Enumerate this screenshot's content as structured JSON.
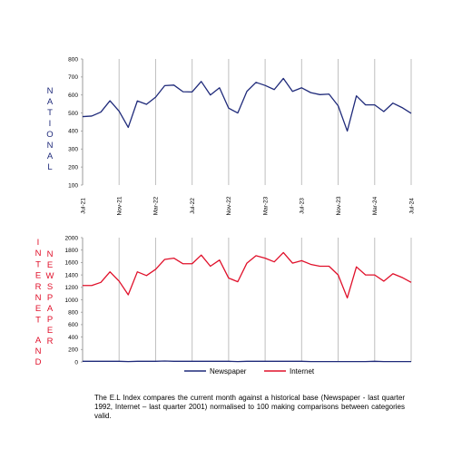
{
  "colors": {
    "national": "#1f2a7a",
    "internet": "#e0102a",
    "newspaper": "#1f2a7a",
    "grid": "#bfbfbf"
  },
  "chart_data": [
    {
      "type": "line",
      "side_label": "NATIONAL",
      "ylim": [
        100,
        800
      ],
      "yticks": [
        100,
        200,
        300,
        400,
        500,
        600,
        700,
        800
      ],
      "x_labels": [
        "Jul-21",
        "Nov-21",
        "Mar-22",
        "Jul-22",
        "Nov-22",
        "Mar-23",
        "Jul-23",
        "Nov-23",
        "Mar-24",
        "Jul-24"
      ],
      "x_label_positions": [
        0,
        4,
        8,
        12,
        16,
        20,
        24,
        28,
        32,
        36
      ],
      "x_count": 37,
      "series": [
        {
          "values": [
            480,
            483,
            505,
            568,
            510,
            420,
            567,
            548,
            588,
            652,
            655,
            618,
            617,
            675,
            600,
            640,
            527,
            500,
            620,
            670,
            653,
            630,
            692,
            620,
            640,
            613,
            602,
            605,
            540,
            400,
            595,
            545,
            545,
            508,
            555,
            530,
            498
          ]
        }
      ]
    },
    {
      "type": "line",
      "side_label": "INTERNET AND NEWSPAPER",
      "side_label_left": "INTERNET",
      "side_label_mid": "AND",
      "side_label_right": "NEWSPAPER",
      "ylim": [
        0,
        2000
      ],
      "yticks": [
        0,
        200,
        400,
        600,
        800,
        1000,
        1200,
        1400,
        1600,
        1800,
        2000
      ],
      "x_count": 37,
      "legend": [
        "Newspaper",
        "Internet"
      ],
      "series": [
        {
          "name": "Newspaper",
          "values": [
            10,
            10,
            10,
            10,
            10,
            5,
            10,
            10,
            10,
            15,
            10,
            10,
            10,
            10,
            10,
            10,
            10,
            5,
            10,
            10,
            10,
            10,
            10,
            10,
            10,
            5,
            5,
            5,
            5,
            5,
            5,
            5,
            10,
            5,
            5,
            5,
            5
          ]
        },
        {
          "name": "Internet",
          "values": [
            1230,
            1230,
            1280,
            1450,
            1300,
            1080,
            1450,
            1390,
            1490,
            1650,
            1670,
            1580,
            1580,
            1720,
            1540,
            1640,
            1350,
            1290,
            1590,
            1710,
            1670,
            1610,
            1760,
            1590,
            1630,
            1570,
            1540,
            1540,
            1400,
            1030,
            1530,
            1400,
            1400,
            1300,
            1420,
            1360,
            1280
          ]
        }
      ]
    }
  ],
  "caption": "The E.L Index compares the current month against a historical base (Newspaper - last quarter 1992, Internet – last quarter 2001) normalised to 100 making comparisons between categories valid."
}
